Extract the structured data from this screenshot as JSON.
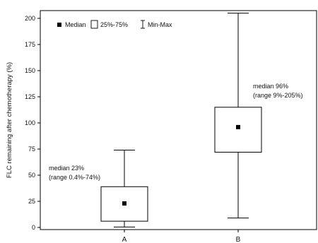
{
  "chart_data": {
    "type": "boxplot",
    "title": "",
    "xlabel": "",
    "ylabel": "FLC remaining after chemotherapy (%)",
    "ylim": [
      0,
      210
    ],
    "yticks": [
      0,
      25,
      50,
      75,
      100,
      125,
      150,
      175,
      200
    ],
    "categories": [
      "A",
      "B"
    ],
    "series": [
      {
        "category": "A",
        "min": 0.4,
        "q1": 6,
        "median": 23,
        "q3": 39,
        "max": 74
      },
      {
        "category": "B",
        "min": 9,
        "q1": 72,
        "median": 96,
        "q3": 115,
        "max": 205
      }
    ],
    "legend": {
      "position": "top-left",
      "median_label": "Median",
      "box_label": "25%-75%",
      "whisker_label": "Min-Max"
    },
    "annotations": [
      {
        "category": "A",
        "lines": [
          "median 23%",
          "(range 0.4%-74%)"
        ]
      },
      {
        "category": "B",
        "lines": [
          "median 96%",
          "(range 9%-205%)"
        ]
      }
    ]
  }
}
